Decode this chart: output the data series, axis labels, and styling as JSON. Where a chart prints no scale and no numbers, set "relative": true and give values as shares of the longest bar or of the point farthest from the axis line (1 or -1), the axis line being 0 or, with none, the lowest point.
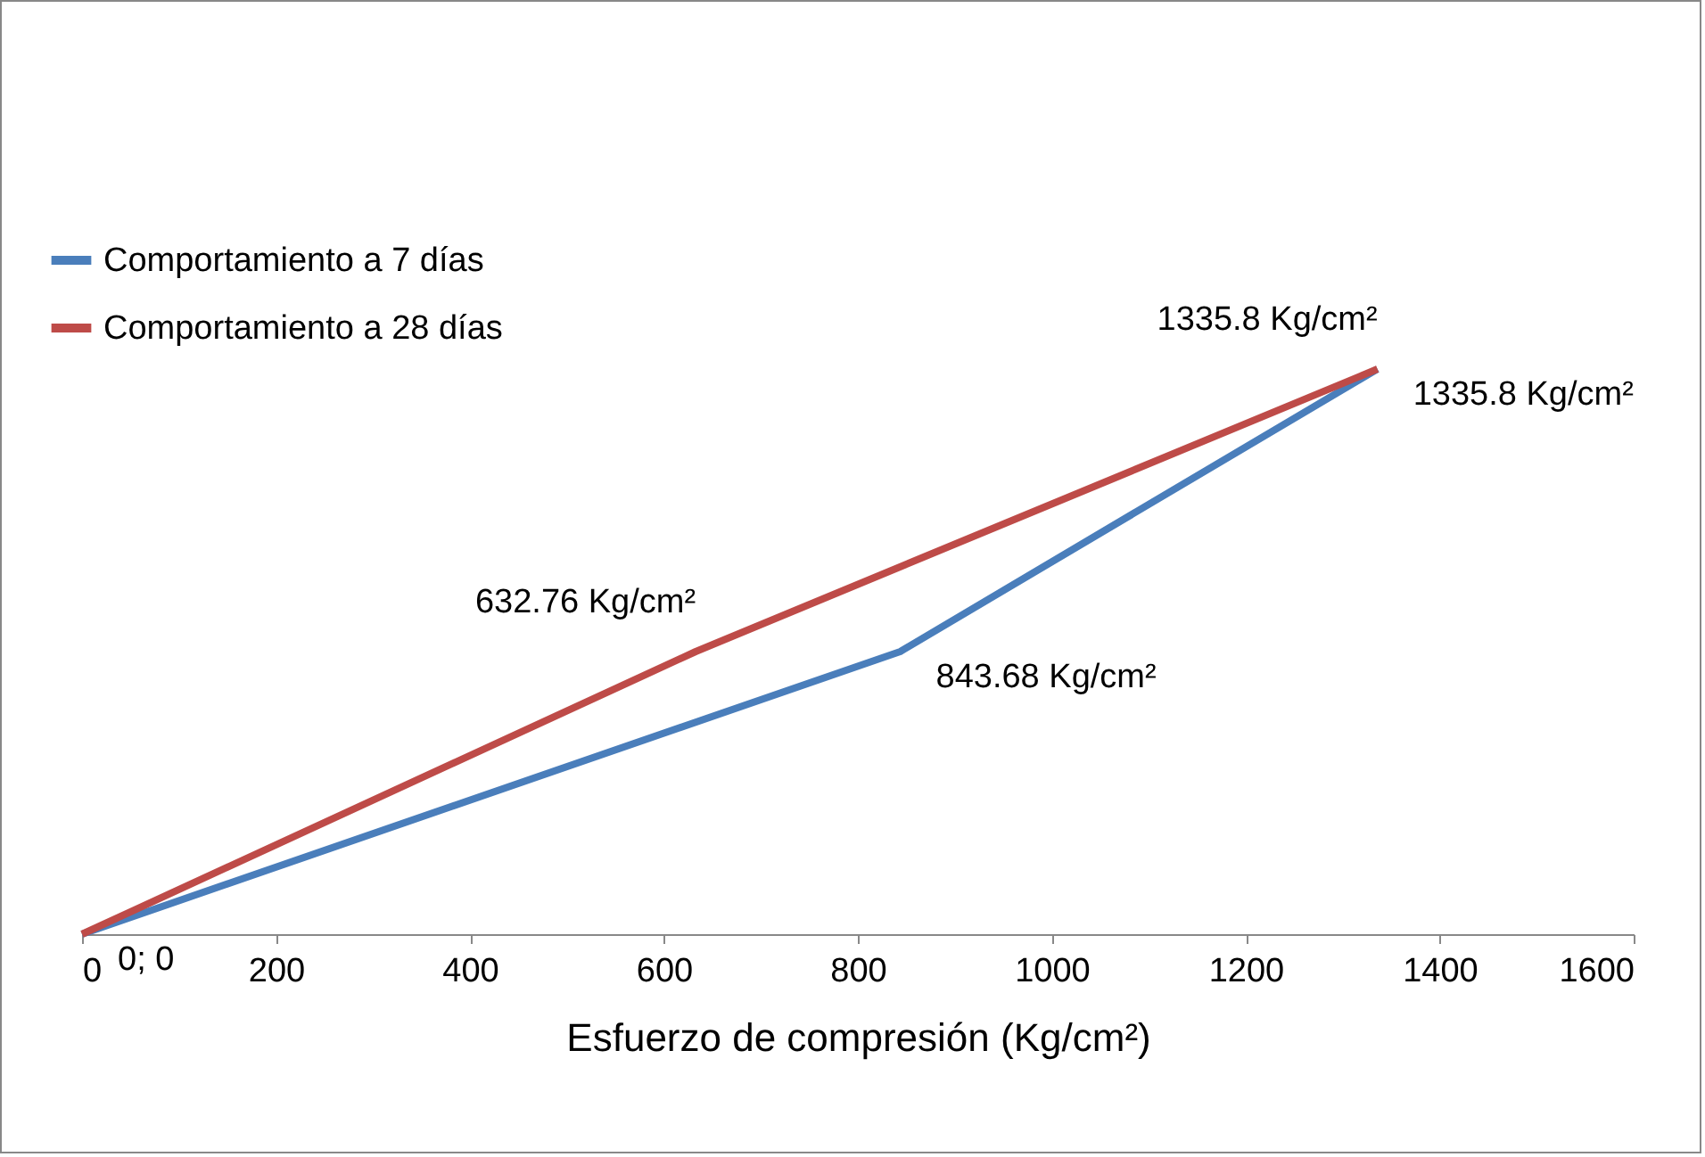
{
  "chart_data": {
    "type": "line",
    "relative": true,
    "xlabel": "Esfuerzo de compresión (Kg/cm²)",
    "xlim": [
      0,
      1600
    ],
    "xticks": [
      0,
      200,
      400,
      600,
      800,
      1000,
      1200,
      1400,
      1600
    ],
    "grid": false,
    "legend": "top left",
    "marker": "none",
    "line_style": "solid",
    "tick_labels": "x",
    "series": [
      {
        "name": "Comportamiento a 7 días",
        "color": "#4a7ebb",
        "x": [
          0,
          843.68,
          1335.8
        ],
        "values": [
          0,
          0.5,
          1
        ]
      },
      {
        "name": "Comportamiento a 28 días",
        "color": "#be4b48",
        "x": [
          0,
          632.76,
          1335.8
        ],
        "values": [
          0,
          0.5,
          1
        ]
      }
    ],
    "annotations": [
      {
        "text": "0; 0",
        "x": 0,
        "y": 0
      },
      {
        "text": "843.68 Kg/cm²",
        "x": 843.68,
        "y": 0.5
      },
      {
        "text": "1335.8 Kg/cm²",
        "x": 1335.8,
        "y": 1
      },
      {
        "text": "632.76 Kg/cm²",
        "x": 632.76,
        "y": 0.5
      },
      {
        "text": "1335.8 Kg/cm²",
        "x": 1335.8,
        "y": 1
      }
    ]
  }
}
